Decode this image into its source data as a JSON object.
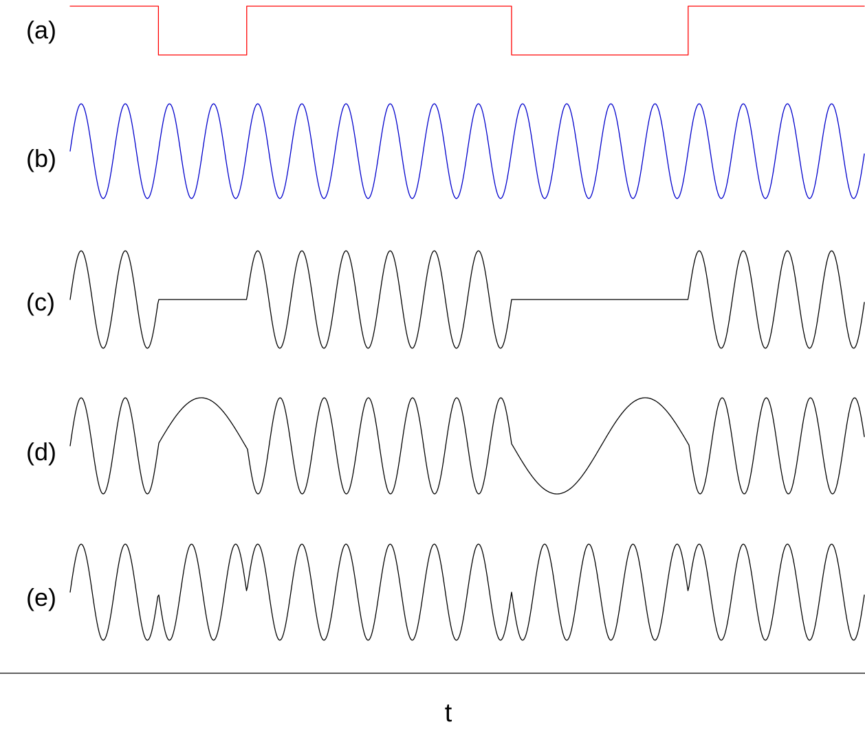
{
  "figure": {
    "x_axis_label": "t",
    "colors": {
      "message": "#ff0000",
      "carrier": "#0000cc",
      "modulated": "#000000",
      "axis": "#000000"
    },
    "rows": [
      {
        "label": "(a)",
        "signal": "binary-message",
        "color_key": "message"
      },
      {
        "label": "(b)",
        "signal": "carrier",
        "color_key": "carrier"
      },
      {
        "label": "(c)",
        "signal": "ask-on-off-keying",
        "color_key": "modulated"
      },
      {
        "label": "(d)",
        "signal": "fsk-frequency-shift-keying",
        "color_key": "modulated"
      },
      {
        "label": "(e)",
        "signal": "psk-phase-shift-keying",
        "color_key": "modulated"
      }
    ],
    "bits": [
      1,
      0,
      1,
      1,
      1,
      0,
      0,
      1,
      1
    ],
    "carrier_cycles_per_bit": 2,
    "fsk_low_cycles_per_bit": 0.5
  }
}
